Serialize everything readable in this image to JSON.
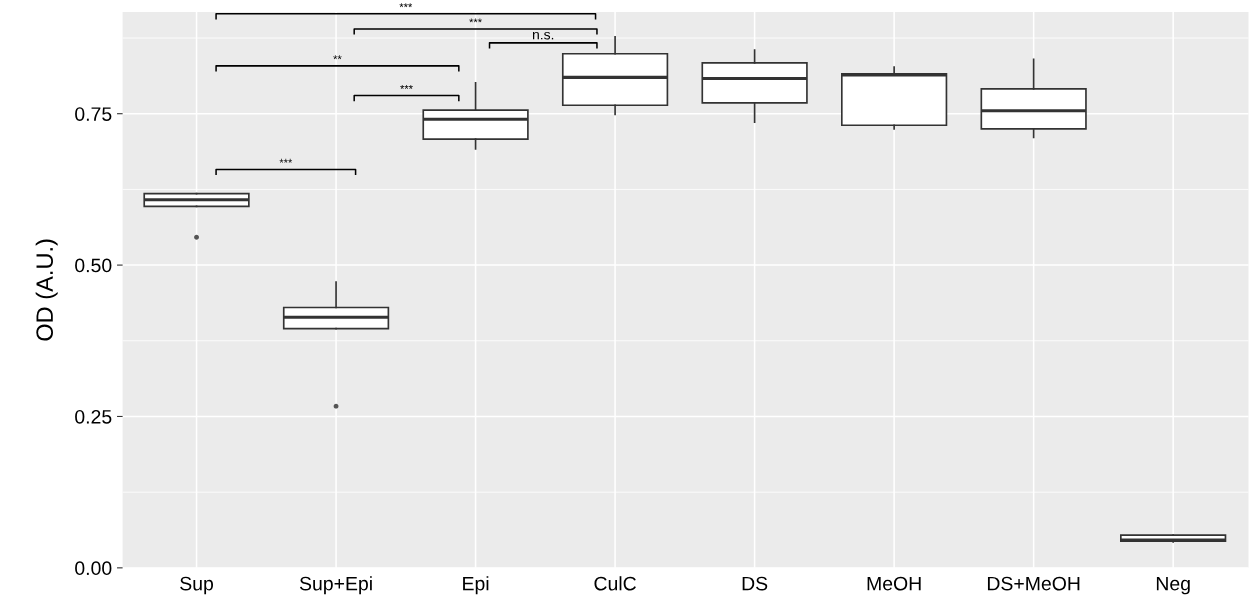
{
  "chart_data": {
    "type": "box",
    "ylabel": "OD (A.U.)",
    "categories": [
      "Sup",
      "Sup+Epi",
      "Epi",
      "CulC",
      "DS",
      "MeOH",
      "DS+MeOH",
      "Neg"
    ],
    "boxes": [
      {
        "low": 0.597,
        "q1": 0.597,
        "median": 0.608,
        "q3": 0.618,
        "high": 0.618,
        "outliers": [
          0.546
        ]
      },
      {
        "low": 0.395,
        "q1": 0.395,
        "median": 0.414,
        "q3": 0.43,
        "high": 0.472,
        "outliers": [
          0.267
        ]
      },
      {
        "low": 0.692,
        "q1": 0.708,
        "median": 0.741,
        "q3": 0.756,
        "high": 0.801
      },
      {
        "low": 0.749,
        "q1": 0.764,
        "median": 0.81,
        "q3": 0.849,
        "high": 0.877
      },
      {
        "low": 0.736,
        "q1": 0.768,
        "median": 0.808,
        "q3": 0.834,
        "high": 0.855
      },
      {
        "low": 0.725,
        "q1": 0.731,
        "median": 0.814,
        "q3": 0.816,
        "high": 0.827
      },
      {
        "low": 0.711,
        "q1": 0.725,
        "median": 0.755,
        "q3": 0.791,
        "high": 0.84
      },
      {
        "low": 0.043,
        "q1": 0.044,
        "median": 0.046,
        "q3": 0.054,
        "high": 0.054
      }
    ],
    "color": "#ffffff",
    "ylim": [
      0,
      0.918
    ],
    "yticks": [
      {
        "value": 0,
        "label": "0.00"
      },
      {
        "value": 0.25,
        "label": "0.25"
      },
      {
        "value": 0.5,
        "label": "0.50"
      },
      {
        "value": 0.75,
        "label": "0.75"
      }
    ],
    "grid": true,
    "annotations": [
      "***",
      "***",
      "n.s.",
      "**",
      "***",
      "***"
    ]
  }
}
